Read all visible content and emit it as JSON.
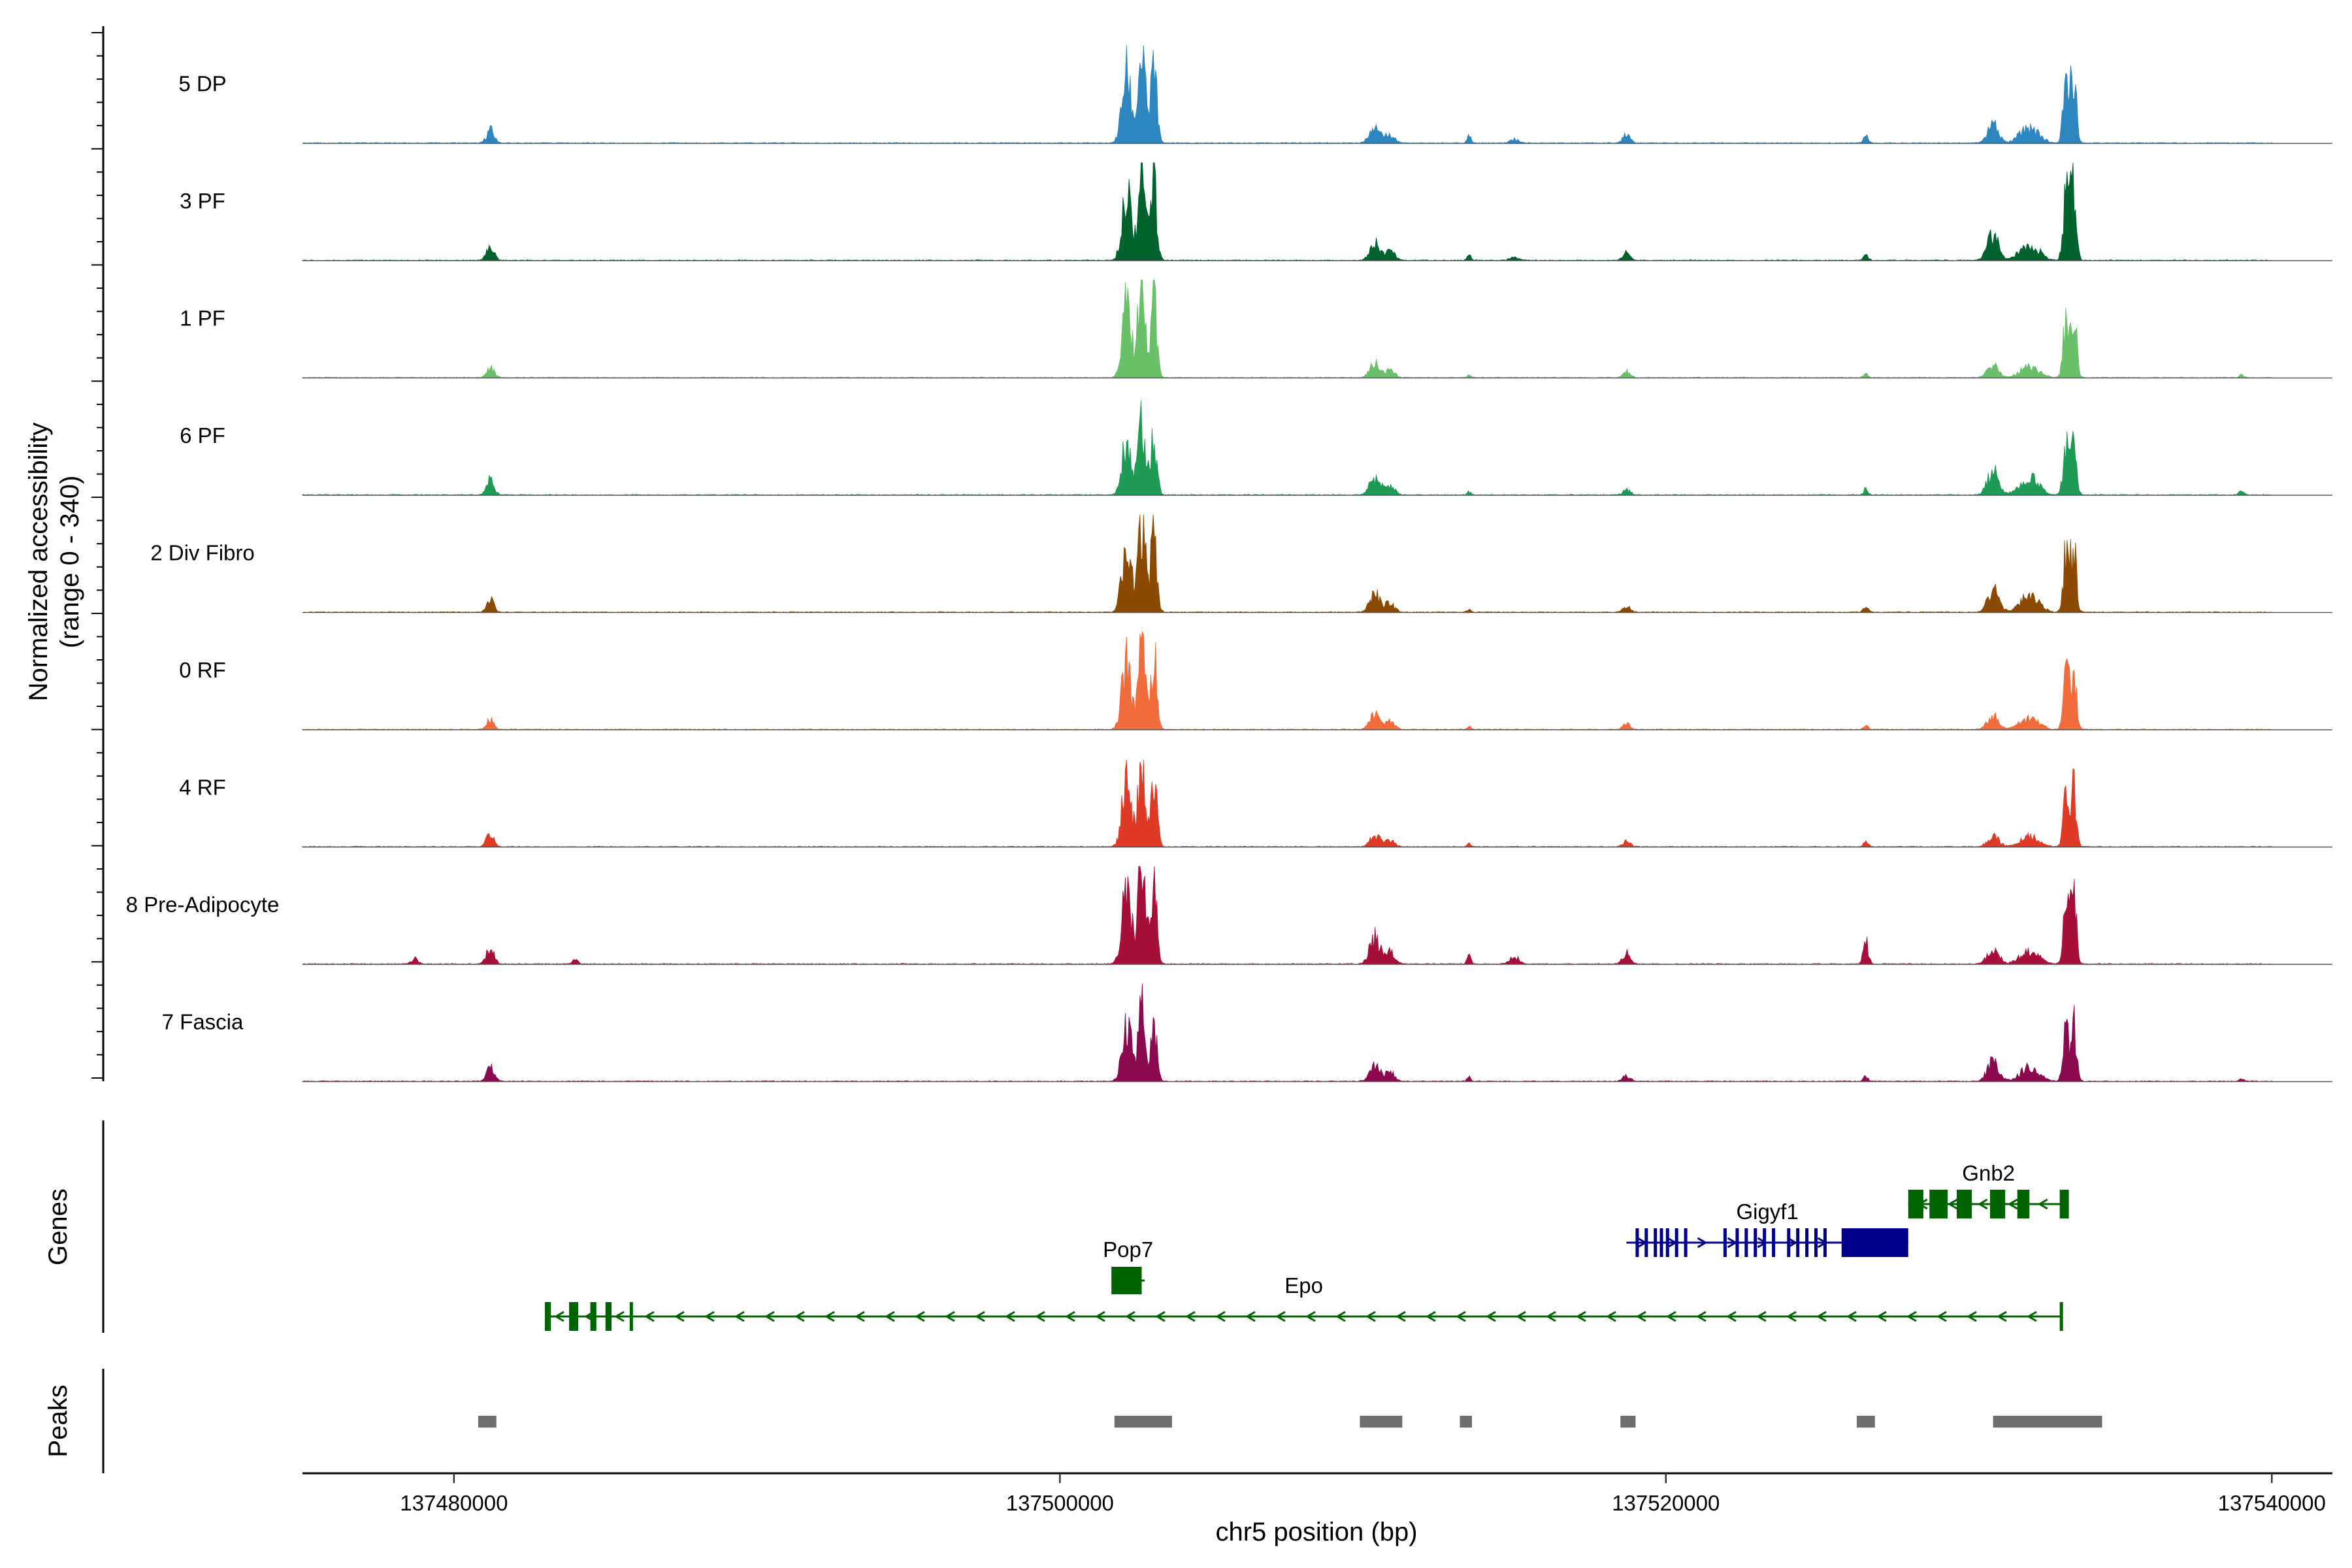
{
  "chart_data": {
    "type": "area",
    "title": "",
    "y_axis_label_line1": "Normalized accessibility",
    "y_axis_label_line2": "(range 0 - 340)",
    "ylim": [
      0,
      340
    ],
    "xlabel": "chr5 position (bp)",
    "xlim": [
      137475000,
      137542000
    ],
    "x_ticks": [
      137480000,
      137500000,
      137520000,
      137540000
    ],
    "x_tick_labels": [
      "137480000",
      "137500000",
      "137520000",
      "137540000"
    ],
    "data_range": [
      137475000,
      137540000
    ],
    "tracks": [
      {
        "name": "5 DP",
        "color": "#2e86c1",
        "peaks": [
          [
            137481200,
            45,
            120
          ],
          [
            137502200,
            240,
            150
          ],
          [
            137502700,
            300,
            120
          ],
          [
            137503100,
            260,
            100
          ],
          [
            137510400,
            65,
            170
          ],
          [
            137510900,
            30,
            150
          ],
          [
            137513500,
            28,
            60
          ],
          [
            137515000,
            14,
            150
          ],
          [
            137518700,
            28,
            120
          ],
          [
            137526600,
            22,
            80
          ],
          [
            137530800,
            60,
            180
          ],
          [
            137532000,
            55,
            300
          ],
          [
            137533200,
            200,
            90
          ],
          [
            137533450,
            260,
            90
          ]
        ]
      },
      {
        "name": "3 PF",
        "color": "#00632e",
        "peaks": [
          [
            137481200,
            50,
            120
          ],
          [
            137502200,
            260,
            150
          ],
          [
            137502700,
            330,
            120
          ],
          [
            137503100,
            280,
            100
          ],
          [
            137510400,
            60,
            170
          ],
          [
            137510900,
            30,
            150
          ],
          [
            137513500,
            20,
            60
          ],
          [
            137515000,
            10,
            150
          ],
          [
            137518700,
            25,
            120
          ],
          [
            137526600,
            20,
            80
          ],
          [
            137530800,
            90,
            180
          ],
          [
            137532000,
            60,
            300
          ],
          [
            137533200,
            220,
            90
          ],
          [
            137533450,
            280,
            90
          ]
        ]
      },
      {
        "name": "1 PF",
        "color": "#6abf69",
        "peaks": [
          [
            137481200,
            35,
            120
          ],
          [
            137502200,
            250,
            150
          ],
          [
            137502700,
            320,
            120
          ],
          [
            137503100,
            270,
            100
          ],
          [
            137510400,
            50,
            170
          ],
          [
            137510900,
            25,
            150
          ],
          [
            137513500,
            15,
            60
          ],
          [
            137518700,
            20,
            120
          ],
          [
            137526600,
            15,
            80
          ],
          [
            137530800,
            40,
            180
          ],
          [
            137532000,
            40,
            300
          ],
          [
            137533200,
            200,
            90
          ],
          [
            137533450,
            260,
            90
          ],
          [
            137539000,
            10,
            80
          ]
        ]
      },
      {
        "name": "6 PF",
        "color": "#1e9a54",
        "peaks": [
          [
            137481200,
            50,
            120
          ],
          [
            137502200,
            180,
            150
          ],
          [
            137502700,
            240,
            120
          ],
          [
            137503100,
            200,
            100
          ],
          [
            137510400,
            60,
            170
          ],
          [
            137510900,
            30,
            150
          ],
          [
            137513500,
            12,
            60
          ],
          [
            137518700,
            20,
            120
          ],
          [
            137526600,
            20,
            80
          ],
          [
            137530800,
            80,
            180
          ],
          [
            137532000,
            60,
            300
          ],
          [
            137533200,
            160,
            90
          ],
          [
            137533450,
            200,
            90
          ],
          [
            137539000,
            12,
            80
          ]
        ]
      },
      {
        "name": "2 Div Fibro",
        "color": "#8c4a00",
        "peaks": [
          [
            137481200,
            40,
            120
          ],
          [
            137502200,
            240,
            150
          ],
          [
            137502700,
            320,
            120
          ],
          [
            137503100,
            270,
            100
          ],
          [
            137510400,
            60,
            170
          ],
          [
            137510900,
            30,
            150
          ],
          [
            137513500,
            12,
            60
          ],
          [
            137518700,
            20,
            120
          ],
          [
            137526600,
            20,
            80
          ],
          [
            137530800,
            80,
            180
          ],
          [
            137532000,
            55,
            300
          ],
          [
            137533200,
            190,
            90
          ],
          [
            137533450,
            240,
            90
          ]
        ]
      },
      {
        "name": "0 RF",
        "color": "#f26b3a",
        "peaks": [
          [
            137481200,
            35,
            120
          ],
          [
            137502200,
            230,
            150
          ],
          [
            137502700,
            290,
            120
          ],
          [
            137503100,
            250,
            100
          ],
          [
            137510400,
            50,
            170
          ],
          [
            137510900,
            25,
            150
          ],
          [
            137513500,
            10,
            60
          ],
          [
            137518700,
            18,
            120
          ],
          [
            137526600,
            15,
            80
          ],
          [
            137530800,
            45,
            180
          ],
          [
            137532000,
            40,
            300
          ],
          [
            137533200,
            180,
            90
          ],
          [
            137533450,
            220,
            90
          ]
        ]
      },
      {
        "name": "4 RF",
        "color": "#de3a26",
        "peaks": [
          [
            137481200,
            45,
            120
          ],
          [
            137502200,
            220,
            150
          ],
          [
            137502700,
            290,
            120
          ],
          [
            137503100,
            250,
            100
          ],
          [
            137510400,
            40,
            170
          ],
          [
            137510900,
            20,
            150
          ],
          [
            137513500,
            10,
            60
          ],
          [
            137518700,
            18,
            120
          ],
          [
            137526600,
            15,
            80
          ],
          [
            137530800,
            40,
            180
          ],
          [
            137532000,
            35,
            300
          ],
          [
            137533200,
            170,
            90
          ],
          [
            137533450,
            210,
            90
          ]
        ]
      },
      {
        "name": "8 Pre-Adipocyte",
        "color": "#a50f3a",
        "peaks": [
          [
            137478700,
            20,
            100
          ],
          [
            137481200,
            60,
            120
          ],
          [
            137484000,
            18,
            80
          ],
          [
            137502200,
            260,
            150
          ],
          [
            137502700,
            330,
            120
          ],
          [
            137503100,
            280,
            100
          ],
          [
            137510400,
            90,
            170
          ],
          [
            137510900,
            40,
            150
          ],
          [
            137513500,
            35,
            60
          ],
          [
            137515000,
            25,
            150
          ],
          [
            137518700,
            40,
            120
          ],
          [
            137526600,
            80,
            80
          ],
          [
            137530800,
            60,
            180
          ],
          [
            137532000,
            45,
            300
          ],
          [
            137533200,
            200,
            90
          ],
          [
            137533450,
            270,
            90
          ]
        ]
      },
      {
        "name": "7 Fascia",
        "color": "#8b0a4f",
        "peaks": [
          [
            137481200,
            50,
            120
          ],
          [
            137502200,
            210,
            150
          ],
          [
            137502700,
            260,
            120
          ],
          [
            137503100,
            230,
            100
          ],
          [
            137510400,
            50,
            170
          ],
          [
            137510900,
            30,
            150
          ],
          [
            137513500,
            14,
            60
          ],
          [
            137518700,
            20,
            120
          ],
          [
            137526600,
            15,
            80
          ],
          [
            137530800,
            70,
            180
          ],
          [
            137532000,
            45,
            300
          ],
          [
            137533200,
            160,
            90
          ],
          [
            137533450,
            220,
            90
          ],
          [
            137539000,
            8,
            80
          ]
        ]
      }
    ],
    "genes_label": "Genes",
    "genes": [
      {
        "name": "Gnb2",
        "color": "#006400",
        "strand": "-",
        "row": 0,
        "start": 137528000,
        "end": 137533300,
        "exons": [
          [
            137528000,
            137528500
          ],
          [
            137528700,
            137529300
          ],
          [
            137529600,
            137530100
          ],
          [
            137530700,
            137531200
          ],
          [
            137531600,
            137532000
          ],
          [
            137533000,
            137533300
          ]
        ]
      },
      {
        "name": "Gigyf1",
        "color": "#00008b",
        "strand": "+",
        "row": 1,
        "start": 137518700,
        "end": 137528000,
        "exons": [
          [
            137519000,
            137519100
          ],
          [
            137519300,
            137519400
          ],
          [
            137519600,
            137519700
          ],
          [
            137519800,
            137519900
          ],
          [
            137520000,
            137520100
          ],
          [
            137520300,
            137520400
          ],
          [
            137520600,
            137520700
          ],
          [
            137521900,
            137522000
          ],
          [
            137522300,
            137522400
          ],
          [
            137522600,
            137522700
          ],
          [
            137522900,
            137523000
          ],
          [
            137523200,
            137523300
          ],
          [
            137523500,
            137523600
          ],
          [
            137524000,
            137524100
          ],
          [
            137524300,
            137524400
          ],
          [
            137524600,
            137524700
          ],
          [
            137524900,
            137525000
          ],
          [
            137525200,
            137525300
          ],
          [
            137525800,
            137528000
          ]
        ]
      },
      {
        "name": "Pop7",
        "color": "#006400",
        "strand": "-",
        "row": 2,
        "start": 137501700,
        "end": 137502800,
        "exons": [
          [
            137501700,
            137502700
          ]
        ]
      },
      {
        "name": "Epo",
        "color": "#006400",
        "strand": "-",
        "row": 3,
        "start": 137483000,
        "end": 137533100,
        "exons": [
          [
            137483000,
            137483200
          ],
          [
            137483800,
            137484100
          ],
          [
            137484500,
            137484700
          ],
          [
            137485000,
            137485200
          ],
          [
            137485800,
            137485900
          ],
          [
            137533000,
            137533100
          ]
        ]
      }
    ],
    "peaks_label": "Peaks",
    "peak_color": "#6e6e6e",
    "peak_regions": [
      [
        137480800,
        137481400
      ],
      [
        137501800,
        137503700
      ],
      [
        137509900,
        137511300
      ],
      [
        137513200,
        137513600
      ],
      [
        137518500,
        137519000
      ],
      [
        137526300,
        137526900
      ],
      [
        137530800,
        137534400
      ]
    ]
  }
}
